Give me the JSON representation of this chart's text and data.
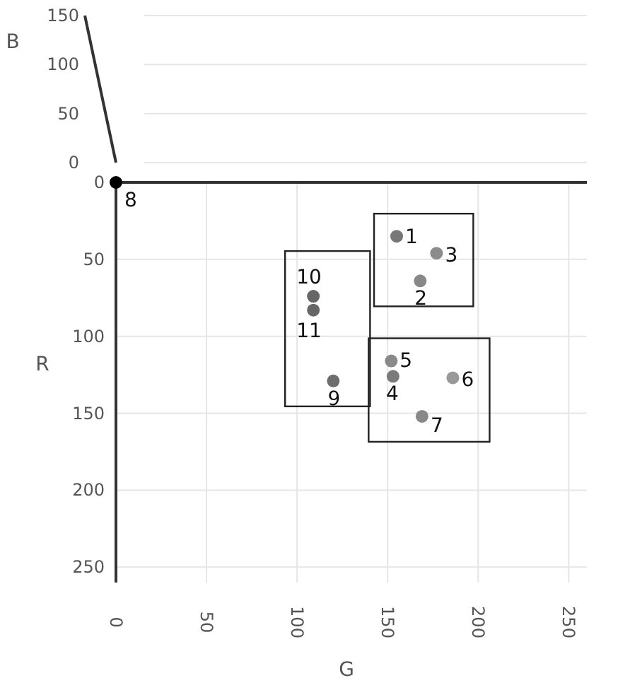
{
  "chart_data": [
    {
      "type": "scatter",
      "ylabel": "B",
      "xlim": [
        0,
        260
      ],
      "ylim": [
        0,
        150
      ],
      "yticks": [
        0,
        50,
        100,
        150
      ],
      "grid": "y",
      "tick_labels": "y"
    },
    {
      "type": "scatter",
      "xlabel": "G",
      "ylabel": "R",
      "x": [
        155,
        168,
        177,
        153,
        152,
        186,
        169,
        0,
        120,
        109,
        109
      ],
      "values": [
        35,
        64,
        46,
        126,
        116,
        127,
        152,
        0,
        129,
        74,
        83
      ],
      "colors": [
        "#777777",
        "#888888",
        "#8c8c8c",
        "#7a7a7a",
        "#8a8a8a",
        "#999999",
        "#888888",
        "#000000",
        "#6e6e6e",
        "#666666",
        "#666666"
      ],
      "xlim": [
        0,
        260
      ],
      "xticks": [
        0,
        50,
        100,
        150,
        200,
        250
      ],
      "ylim": [
        260,
        0
      ],
      "yticks": [
        0,
        50,
        100,
        150,
        200,
        250
      ],
      "grid": true,
      "marker": "circle",
      "annotations": [
        {
          "text": "1",
          "x": 155,
          "y": 35
        },
        {
          "text": "2",
          "x": 168,
          "y": 64
        },
        {
          "text": "3",
          "x": 177,
          "y": 46
        },
        {
          "text": "4",
          "x": 153,
          "y": 126
        },
        {
          "text": "5",
          "x": 152,
          "y": 116
        },
        {
          "text": "6",
          "x": 186,
          "y": 127
        },
        {
          "text": "7",
          "x": 169,
          "y": 152
        },
        {
          "text": "8",
          "x": 0,
          "y": 0
        },
        {
          "text": "9",
          "x": 120,
          "y": 129
        },
        {
          "text": "10",
          "x": 109,
          "y": 74
        },
        {
          "text": "11",
          "x": 109,
          "y": 83
        }
      ]
    }
  ]
}
